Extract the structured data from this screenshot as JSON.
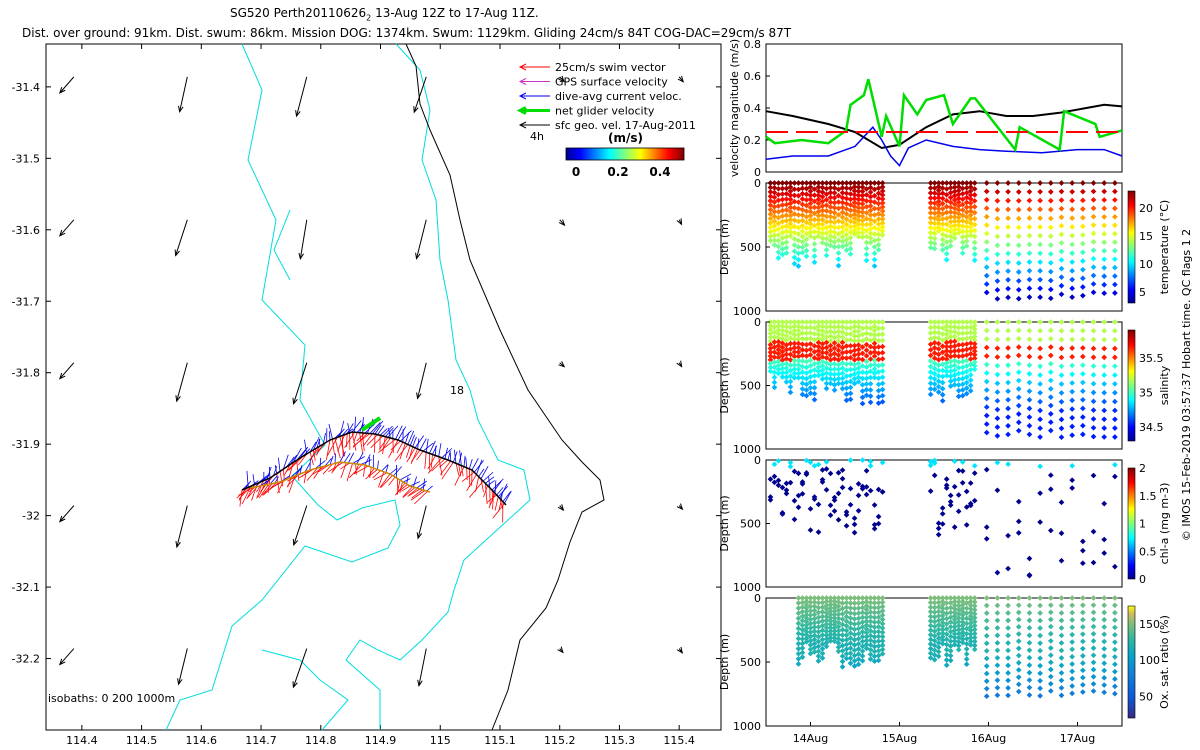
{
  "header": {
    "title_main": "SG520 Perth20110626",
    "title_sub": "2",
    "title_rest": " 13-Aug 12Z to 17-Aug 11Z.",
    "stats_line": "Dist. over ground: 91km. Dist. swum: 86km. Mission DOG: 1374km. Swum: 1129km. Gliding 24cm/s 84T COG-DAC=29cm/s 87T"
  },
  "colors": {
    "swim_vector": "#ff0000",
    "gps_surface": "#cc33cc",
    "dive_avg_current": "#0000ee",
    "net_glider": "#00dd00",
    "sfc_geo": "#000000",
    "isobath": "#00dddd",
    "coast": "#000000"
  },
  "map": {
    "legend": [
      {
        "key": "swim",
        "label": "25cm/s swim vector"
      },
      {
        "key": "gps",
        "label": "GPS surface velocity"
      },
      {
        "key": "dac",
        "label": "dive-avg current veloc."
      },
      {
        "key": "net",
        "label": "net glider velocity"
      },
      {
        "key": "geo",
        "label": "sfc geo. vel. 17-Aug-2011"
      }
    ],
    "four_h_label": "4h",
    "colorbar_unit": "(m/s)",
    "colorbar_ticks": [
      "0",
      "0.2",
      "0.4"
    ],
    "isobaths_label": "isobaths: 0   200  1000m",
    "annotation_18": "18",
    "x_ticks": [
      "114.4",
      "114.5",
      "114.6",
      "114.7",
      "114.8",
      "114.9",
      "115",
      "115.1",
      "115.2",
      "115.3",
      "115.4"
    ],
    "y_ticks": [
      "-31.4",
      "-31.5",
      "-31.6",
      "-31.7",
      "-31.8",
      "-31.9",
      "-32",
      "-32.1",
      "-32.2"
    ],
    "xlim": [
      114.34,
      115.47
    ],
    "ylim": [
      -32.3,
      -31.34
    ]
  },
  "chart_data": [
    {
      "type": "line",
      "ylabel": "velocity magnitude (m/s)",
      "ylim": [
        0,
        0.8
      ],
      "y_ticks": [
        "0",
        "0.2",
        "0.4",
        "0.6",
        "0.8"
      ],
      "x_days": [
        13.5,
        17.5
      ],
      "series": [
        {
          "key": "geo",
          "x": [
            13.5,
            13.8,
            14.2,
            14.5,
            14.8,
            15.0,
            15.3,
            15.6,
            15.9,
            16.2,
            16.5,
            16.8,
            17.1,
            17.3,
            17.5
          ],
          "y": [
            0.38,
            0.35,
            0.3,
            0.25,
            0.15,
            0.17,
            0.28,
            0.36,
            0.38,
            0.35,
            0.35,
            0.37,
            0.4,
            0.42,
            0.41
          ]
        },
        {
          "key": "dac",
          "x": [
            13.5,
            13.8,
            14.2,
            14.5,
            14.7,
            14.8,
            14.9,
            15.0,
            15.1,
            15.3,
            15.6,
            15.9,
            16.2,
            16.6,
            17.0,
            17.3,
            17.5
          ],
          "y": [
            0.08,
            0.1,
            0.1,
            0.16,
            0.28,
            0.2,
            0.1,
            0.04,
            0.15,
            0.2,
            0.16,
            0.14,
            0.13,
            0.12,
            0.14,
            0.14,
            0.1
          ]
        },
        {
          "key": "net",
          "x": [
            13.5,
            13.6,
            13.9,
            14.2,
            14.4,
            14.45,
            14.6,
            14.65,
            14.8,
            14.85,
            15.0,
            15.05,
            15.2,
            15.3,
            15.5,
            15.6,
            15.8,
            15.85,
            16.3,
            16.35,
            16.8,
            16.85,
            17.2,
            17.25,
            17.5
          ],
          "y": [
            0.22,
            0.18,
            0.2,
            0.18,
            0.26,
            0.42,
            0.48,
            0.58,
            0.22,
            0.35,
            0.16,
            0.48,
            0.36,
            0.45,
            0.48,
            0.3,
            0.46,
            0.46,
            0.14,
            0.28,
            0.14,
            0.38,
            0.3,
            0.22,
            0.26
          ]
        },
        {
          "key": "swim",
          "x": [
            13.5,
            17.5
          ],
          "y": [
            0.25,
            0.25
          ]
        }
      ]
    },
    {
      "type": "scatter",
      "ylabel": "Depth (m)",
      "colorbar_label": "temperature (°C)",
      "colorbar_ticks": [
        "5",
        "10",
        "15",
        "20"
      ],
      "clim": [
        3,
        23
      ],
      "ylim": [
        1000,
        0
      ],
      "y_ticks": [
        "0",
        "500",
        "1000"
      ]
    },
    {
      "type": "scatter",
      "ylabel": "Depth (m)",
      "colorbar_label": "salinity",
      "colorbar_ticks": [
        "34.5",
        "35",
        "35.5"
      ],
      "clim": [
        34.3,
        35.9
      ],
      "ylim": [
        1000,
        0
      ],
      "y_ticks": [
        "0",
        "500",
        "1000"
      ]
    },
    {
      "type": "scatter",
      "ylabel": "Depth (m)",
      "colorbar_label": "chl-a (mg m-3)",
      "colorbar_ticks": [
        "0",
        "0.5",
        "1",
        "1.5",
        "2"
      ],
      "clim": [
        0,
        2
      ],
      "ylim": [
        1000,
        0
      ],
      "y_ticks": [
        "0",
        "500",
        "1000"
      ]
    },
    {
      "type": "scatter",
      "ylabel": "Depth (m)",
      "colorbar_label": "Ox. sat. ratio (%)",
      "colorbar_ticks": [
        "50",
        "100",
        "150"
      ],
      "clim": [
        20,
        175
      ],
      "ylim": [
        1000,
        0
      ],
      "y_ticks": [
        "0",
        "500",
        "1000"
      ],
      "x_ticks": [
        "14Aug",
        "15Aug",
        "16Aug",
        "17Aug"
      ]
    }
  ],
  "side_note": "© IMOS 15-Feb-2019 03:57:37 Hobart time. QC flags 1  2"
}
